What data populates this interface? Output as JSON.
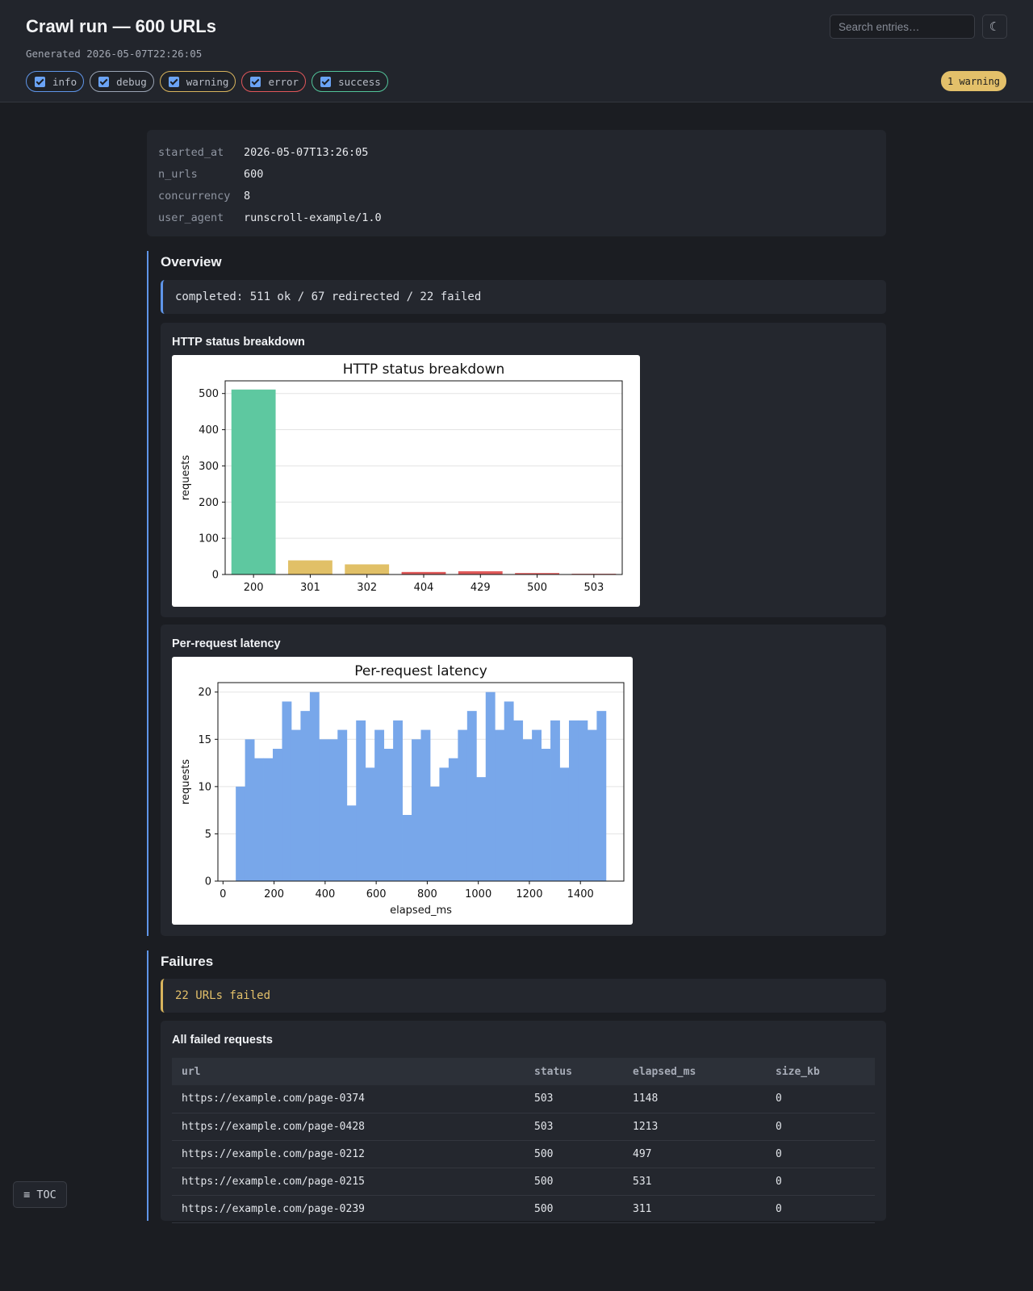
{
  "header": {
    "title": "Crawl run — 600 URLs",
    "generated": "Generated 2026-05-07T22:26:05",
    "search_placeholder": "Search entries…",
    "theme_icon": "☾",
    "warning_badge": "1 warning",
    "filters": [
      {
        "label": "info",
        "checked": true,
        "color": "#5f95e8"
      },
      {
        "label": "debug",
        "checked": true,
        "color": "#9aa4b4"
      },
      {
        "label": "warning",
        "checked": true,
        "color": "#d8b45d"
      },
      {
        "label": "error",
        "checked": true,
        "color": "#e0565a"
      },
      {
        "label": "success",
        "checked": true,
        "color": "#52c49a"
      }
    ]
  },
  "meta": [
    {
      "key": "started_at",
      "value": "2026-05-07T13:26:05"
    },
    {
      "key": "n_urls",
      "value": "600"
    },
    {
      "key": "concurrency",
      "value": "8"
    },
    {
      "key": "user_agent",
      "value": "runscroll-example/1.0"
    }
  ],
  "overview": {
    "title": "Overview",
    "note": "completed: 511 ok / 67 redirected / 22 failed",
    "status_card_title": "HTTP status breakdown",
    "latency_card_title": "Per-request latency"
  },
  "failures": {
    "title": "Failures",
    "note": "22 URLs failed",
    "table_title": "All failed requests",
    "columns": [
      "url",
      "status",
      "elapsed_ms",
      "size_kb"
    ],
    "rows": [
      [
        "https://example.com/page-0374",
        "503",
        "1148",
        "0"
      ],
      [
        "https://example.com/page-0428",
        "503",
        "1213",
        "0"
      ],
      [
        "https://example.com/page-0212",
        "500",
        "497",
        "0"
      ],
      [
        "https://example.com/page-0215",
        "500",
        "531",
        "0"
      ],
      [
        "https://example.com/page-0239",
        "500",
        "311",
        "0"
      ]
    ]
  },
  "toc_label": "≡ TOC",
  "chart_data": [
    {
      "type": "bar",
      "title": "HTTP status breakdown",
      "xlabel": "",
      "ylabel": "requests",
      "categories": [
        "200",
        "301",
        "302",
        "404",
        "429",
        "500",
        "503"
      ],
      "values": [
        511,
        39,
        28,
        7,
        9,
        4,
        2
      ],
      "colors": [
        "#5ec8a0",
        "#e1c067",
        "#e1c067",
        "#e05a5a",
        "#e05a5a",
        "#e05a5a",
        "#e05a5a"
      ],
      "ylim": [
        0,
        535
      ],
      "yticks": [
        0,
        100,
        200,
        300,
        400,
        500
      ],
      "grid": true
    },
    {
      "type": "bar",
      "title": "Per-request latency",
      "xlabel": "elapsed_ms",
      "ylabel": "requests",
      "bin_edges_start": 50,
      "bin_width": 36.25,
      "values": [
        10,
        15,
        13,
        13,
        14,
        19,
        16,
        18,
        20,
        15,
        15,
        16,
        8,
        17,
        12,
        16,
        14,
        17,
        7,
        15,
        16,
        10,
        12,
        13,
        16,
        18,
        11,
        20,
        16,
        19,
        17,
        15,
        16,
        14,
        17,
        12,
        17,
        17,
        16,
        18
      ],
      "color": "#78a7ea",
      "xlim": [
        -20,
        1570
      ],
      "ylim": [
        0,
        21
      ],
      "xticks": [
        0,
        200,
        400,
        600,
        800,
        1000,
        1200,
        1400
      ],
      "yticks": [
        0,
        5,
        10,
        15,
        20
      ],
      "grid": true
    }
  ]
}
